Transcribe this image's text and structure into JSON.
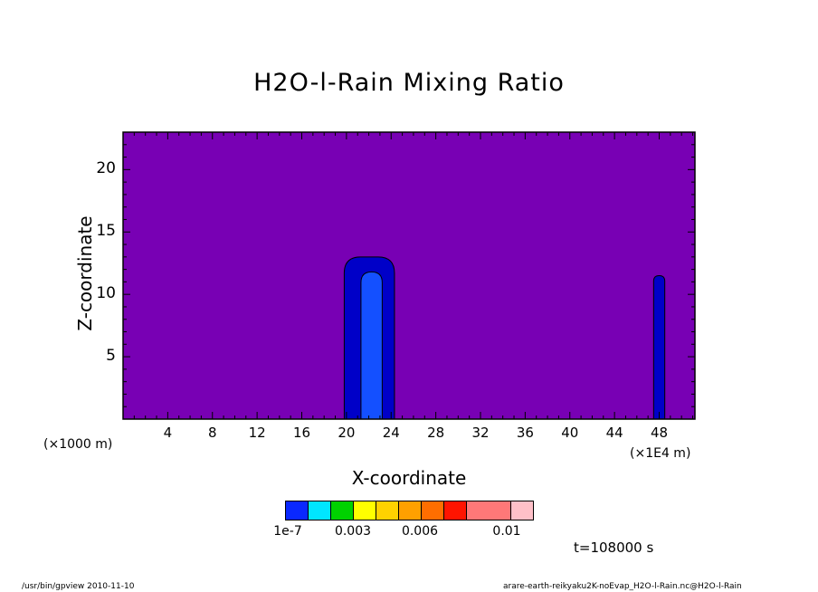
{
  "chart_data": {
    "type": "contour",
    "title": "H2O-l-Rain Mixing Ratio",
    "xlabel": "X-coordinate",
    "ylabel": "Z-coordinate",
    "x_unit_left": "(×1000 m)",
    "x_unit_right": "(×1E4 m)",
    "xlim": [
      0,
      51.2
    ],
    "ylim": [
      0,
      23
    ],
    "x_ticks": [
      4,
      8,
      12,
      16,
      20,
      24,
      28,
      32,
      36,
      40,
      44,
      48
    ],
    "y_ticks": [
      5,
      10,
      15,
      20
    ],
    "background_color": "#7800b4",
    "features": [
      {
        "name": "column A outer",
        "x": [
          19.8,
          24.3
        ],
        "z": [
          0,
          13.0
        ],
        "color": "#0000c8"
      },
      {
        "name": "column A inner",
        "x": [
          21.3,
          23.2
        ],
        "z": [
          0,
          11.8
        ],
        "color": "#1450ff"
      },
      {
        "name": "column B outer",
        "x": [
          47.5,
          48.5
        ],
        "z": [
          0,
          11.5
        ],
        "color": "#0000c8"
      }
    ],
    "colorbar": {
      "colors": [
        "#0a28ff",
        "#00e6ff",
        "#00d200",
        "#ffff00",
        "#ffd200",
        "#ffa000",
        "#ff6e00",
        "#ff1400",
        "#ff7878",
        "#ffc0c8"
      ],
      "tick_labels": [
        "1e-7",
        "0.003",
        "0.006",
        "0.01"
      ]
    }
  },
  "time_label": "t=108000 s",
  "footer_left": "/usr/bin/gpview  2010-11-10",
  "footer_right": "arare-earth-reikyaku2K-noEvap_H2O-l-Rain.nc@H2O-l-Rain"
}
